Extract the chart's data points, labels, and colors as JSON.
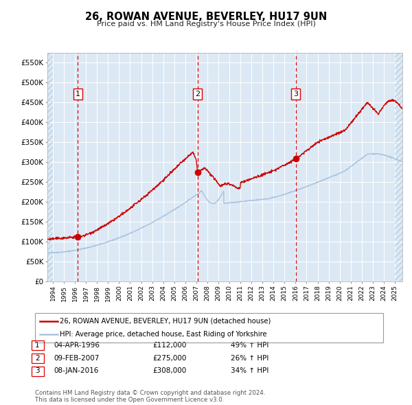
{
  "title": "26, ROWAN AVENUE, BEVERLEY, HU17 9UN",
  "subtitle": "Price paid vs. HM Land Registry's House Price Index (HPI)",
  "legend_line1": "26, ROWAN AVENUE, BEVERLEY, HU17 9UN (detached house)",
  "legend_line2": "HPI: Average price, detached house, East Riding of Yorkshire",
  "transactions": [
    {
      "num": 1,
      "date": "04-APR-1996",
      "price": 112000,
      "pct": "49%",
      "dir": "↑",
      "x_year": 1996.27
    },
    {
      "num": 2,
      "date": "09-FEB-2007",
      "price": 275000,
      "pct": "26%",
      "dir": "↑",
      "x_year": 2007.11
    },
    {
      "num": 3,
      "date": "08-JAN-2016",
      "price": 308000,
      "pct": "34%",
      "dir": "↑",
      "x_year": 2016.03
    }
  ],
  "footer_line1": "Contains HM Land Registry data © Crown copyright and database right 2024.",
  "footer_line2": "This data is licensed under the Open Government Licence v3.0.",
  "hpi_color": "#aac4e0",
  "price_color": "#cc0000",
  "dashed_color": "#dd0000",
  "plot_bg": "#dce9f5",
  "ylim": [
    0,
    575000
  ],
  "xlim_start": 1993.5,
  "xlim_end": 2025.7,
  "yticks": [
    0,
    50000,
    100000,
    150000,
    200000,
    250000,
    300000,
    350000,
    400000,
    450000,
    500000,
    550000
  ],
  "ytick_labels": [
    "£0",
    "£50K",
    "£100K",
    "£150K",
    "£200K",
    "£250K",
    "£300K",
    "£350K",
    "£400K",
    "£450K",
    "£500K",
    "£550K"
  ],
  "xticks": [
    1994,
    1995,
    1996,
    1997,
    1998,
    1999,
    2000,
    2001,
    2002,
    2003,
    2004,
    2005,
    2006,
    2007,
    2008,
    2009,
    2010,
    2011,
    2012,
    2013,
    2014,
    2015,
    2016,
    2017,
    2018,
    2019,
    2020,
    2021,
    2022,
    2023,
    2024,
    2025
  ],
  "hatch_xleft_end": 1994.0,
  "hatch_xright_start": 2025.0
}
